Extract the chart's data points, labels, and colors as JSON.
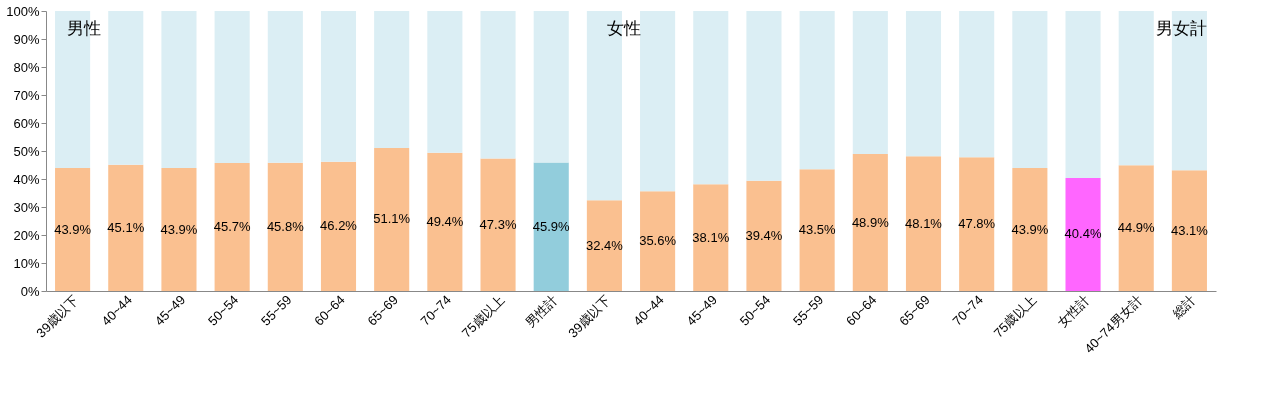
{
  "chart_data": {
    "type": "bar",
    "stacked": true,
    "categories": [
      "39歳以下",
      "40~44",
      "45~49",
      "50~54",
      "55~59",
      "60~64",
      "65~69",
      "70~74",
      "75歳以上",
      "男性計",
      "39歳以下",
      "40~44",
      "45~49",
      "50~54",
      "55~59",
      "60~64",
      "65~69",
      "70~74",
      "75歳以上",
      "女性計",
      "40~74男女計",
      "総計"
    ],
    "series": [
      {
        "colors": [
          "#fac090",
          "#fac090",
          "#fac090",
          "#fac090",
          "#fac090",
          "#fac090",
          "#fac090",
          "#fac090",
          "#fac090",
          "#92cddc",
          "#fac090",
          "#fac090",
          "#fac090",
          "#fac090",
          "#fac090",
          "#fac090",
          "#fac090",
          "#fac090",
          "#fac090",
          "#ff66ff",
          "#fac090",
          "#fac090"
        ],
        "values": [
          43.9,
          45.1,
          43.9,
          45.7,
          45.8,
          46.2,
          51.1,
          49.4,
          47.3,
          45.9,
          32.4,
          35.6,
          38.1,
          39.4,
          43.5,
          48.9,
          48.1,
          47.8,
          43.9,
          40.4,
          44.9,
          43.1
        ],
        "value_labels": [
          "43.9%",
          "45.1%",
          "43.9%",
          "45.7%",
          "45.8%",
          "46.2%",
          "51.1%",
          "49.4%",
          "47.3%",
          "45.9%",
          "32.4%",
          "35.6%",
          "38.1%",
          "39.4%",
          "43.5%",
          "48.9%",
          "48.1%",
          "47.8%",
          "43.9%",
          "40.4%",
          "44.9%",
          "43.1%"
        ]
      },
      {
        "color": "#dbeef4",
        "values": [
          56.1,
          54.9,
          56.1,
          54.3,
          54.2,
          53.8,
          48.9,
          50.6,
          52.7,
          54.1,
          67.6,
          64.4,
          61.9,
          60.6,
          56.5,
          51.1,
          51.9,
          52.2,
          56.1,
          59.6,
          55.1,
          56.9
        ]
      }
    ],
    "ylim": [
      0,
      100
    ],
    "yticks": [
      {
        "value": 0,
        "label": "0%"
      },
      {
        "value": 10,
        "label": "10%"
      },
      {
        "value": 20,
        "label": "20%"
      },
      {
        "value": 30,
        "label": "30%"
      },
      {
        "value": 40,
        "label": "40%"
      },
      {
        "value": 50,
        "label": "50%"
      },
      {
        "value": 60,
        "label": "60%"
      },
      {
        "value": 70,
        "label": "70%"
      },
      {
        "value": 80,
        "label": "80%"
      },
      {
        "value": 90,
        "label": "90%"
      },
      {
        "value": 100,
        "label": "100%"
      }
    ],
    "annotations": [
      "男性",
      "女性",
      "男女計"
    ],
    "grid": false,
    "legend": false
  }
}
